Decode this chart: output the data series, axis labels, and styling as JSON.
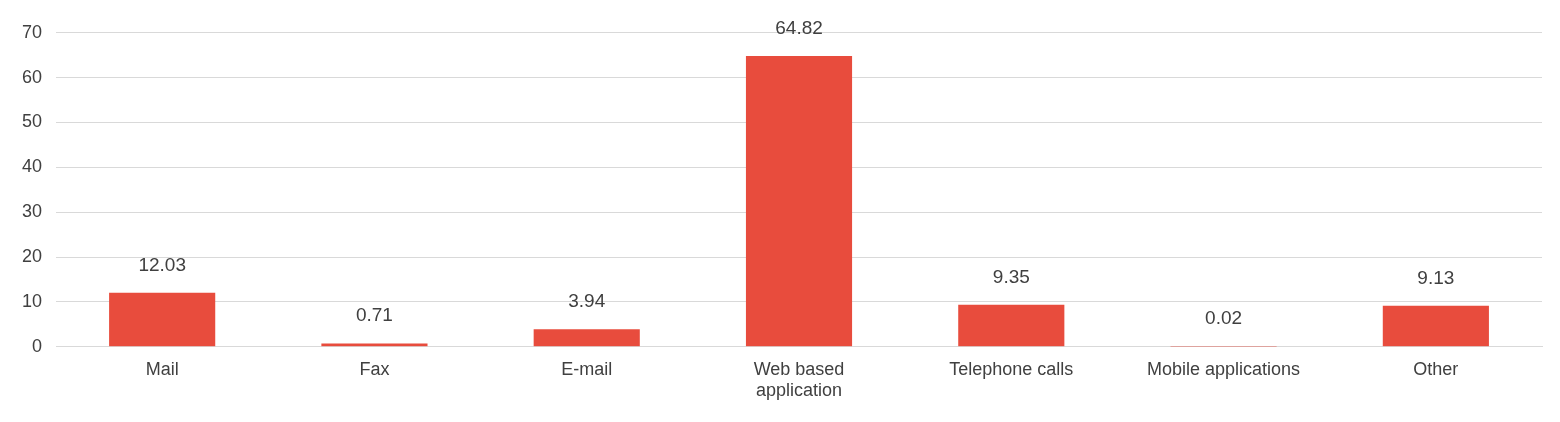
{
  "chart_data": {
    "type": "bar",
    "categories": [
      "Mail",
      "Fax",
      "E-mail",
      "Web based application",
      "Telephone calls",
      "Mobile applications",
      "Other"
    ],
    "values": [
      12.03,
      0.71,
      3.94,
      64.82,
      9.35,
      0.02,
      9.13
    ],
    "color": "#e84c3d",
    "ylim": [
      0,
      70
    ],
    "yticks": [
      0,
      10,
      20,
      30,
      40,
      50,
      60,
      70
    ],
    "grid": "y",
    "data_labels": true
  }
}
